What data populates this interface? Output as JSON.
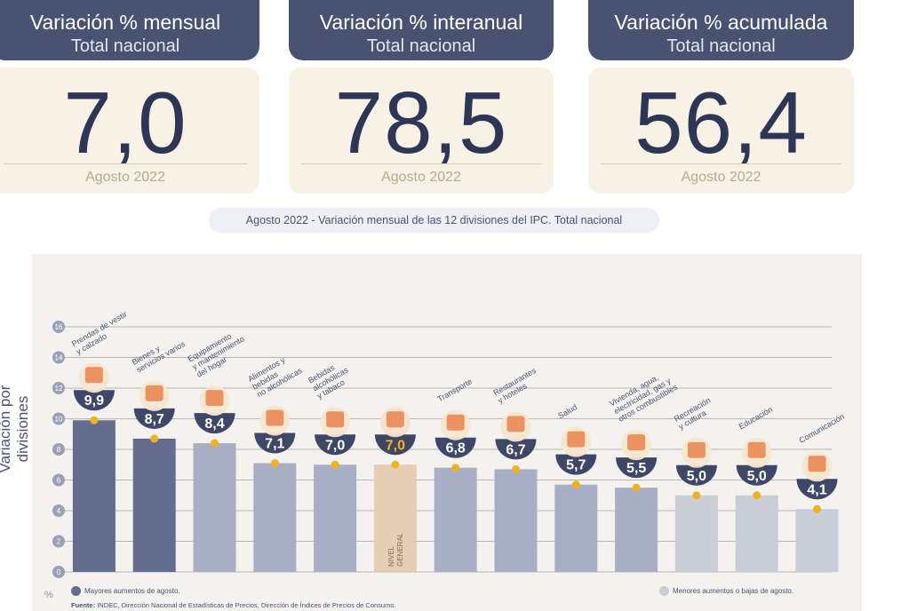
{
  "cards": [
    {
      "title": "Variación % mensual",
      "subtitle": "Total nacional",
      "value": "7,0",
      "date": "Agosto 2022"
    },
    {
      "title": "Variación % interanual",
      "subtitle": "Total nacional",
      "value": "78,5",
      "date": "Agosto 2022"
    },
    {
      "title": "Variación % acumulada",
      "subtitle": "Total nacional",
      "value": "56,4",
      "date": "Agosto 2022"
    }
  ],
  "subtitle": "Agosto 2022 - Variación mensual de las 12 divisiones del IPC. Total nacional",
  "ylabel": "Variación por divisiones",
  "pct_label": "%",
  "legend": {
    "high": "Mayores aumentos de agosto.",
    "low": "Menores aumentos o bajas de agosto."
  },
  "source": {
    "label": "Fuente:",
    "text": "INDEC, Dirección Nacional de Estadísticas de Precios, Dirección de Índices de Precios de Consumo."
  },
  "colors": {
    "dark_bar": "#656d8f",
    "mid_bar": "#a7aec5",
    "light_bar": "#c9cdd8",
    "general_bar": "#e6cdb6",
    "header": "#4a5271",
    "dot": "#f2b21e",
    "icon": "#e8763a"
  },
  "chart_data": {
    "type": "bar",
    "ylim": [
      0,
      16
    ],
    "yticks": [
      0,
      2,
      4,
      6,
      8,
      10,
      12,
      14,
      16
    ],
    "grid": true,
    "categories": [
      "Prendas de vestir y calzado",
      "Bienes y servicios varios",
      "Equipamiento y mantenimiento del hogar",
      "Alimentos y bebidas no alcohólicas",
      "Bebidas alcohólicas y tabaco",
      "Nivel general",
      "Transporte",
      "Restaurantes y hoteles",
      "Salud",
      "Vivienda, agua, electricidad, gas y otros combustibles",
      "Recreación y cultura",
      "Educación",
      "Comunicación"
    ],
    "values": [
      9.9,
      8.7,
      8.4,
      7.1,
      7.0,
      7.0,
      6.8,
      6.7,
      5.7,
      5.5,
      5.0,
      5.0,
      4.1
    ],
    "value_labels": [
      "9,9",
      "8,7",
      "8,4",
      "7,1",
      "7,0",
      "7,0",
      "6,8",
      "6,7",
      "5,7",
      "5,5",
      "5,0",
      "5,0",
      "4,1"
    ],
    "label_lines": [
      [
        "Prendas de vestir",
        "y calzado"
      ],
      [
        "Bienes y",
        "servicios varios"
      ],
      [
        "Equipamiento",
        "y mantenimiento",
        "del hogar"
      ],
      [
        "Alimentos y",
        "bebidas",
        "no alcohólicas"
      ],
      [
        "Bebidas",
        "alcohólicas",
        "y tabaco"
      ],
      [],
      [
        "Transporte"
      ],
      [
        "Restaurantes",
        "y hoteles"
      ],
      [
        "Salud"
      ],
      [
        "Vivienda, agua,",
        "electricidad, gas y",
        "otros combustibles"
      ],
      [
        "Recreación",
        "y cultura"
      ],
      [
        "Educación"
      ],
      [
        "Comunicación"
      ]
    ],
    "general_bar_label": [
      "NIVEL",
      "GENERAL"
    ],
    "icons": [
      "shirt-icon",
      "scissors-comb-icon",
      "washing-machine-icon",
      "chicken-icon",
      "bottle-icon",
      "basket-icon",
      "bus-icon",
      "utensils-icon",
      "first-aid-icon",
      "lightbulb-icon",
      "umbrella-icon",
      "book-icon",
      "phone-icon"
    ],
    "bar_class": [
      "high",
      "high",
      "mid",
      "mid",
      "mid",
      "general",
      "mid",
      "mid",
      "mid",
      "mid",
      "low",
      "low",
      "low"
    ]
  }
}
